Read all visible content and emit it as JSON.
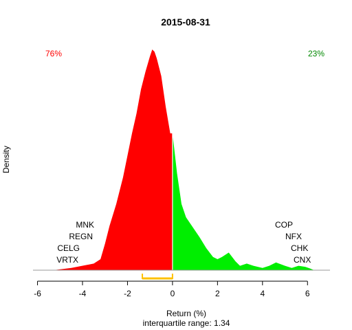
{
  "chart_data": {
    "type": "area",
    "title": "2015-08-31",
    "xlabel": "Return (%)",
    "xlabel_sub": "interquartile range: 1.34",
    "ylabel": "Density",
    "xlim": [
      -6.2,
      7.0
    ],
    "ylim": [
      0,
      1
    ],
    "x_ticks": [
      -6,
      -4,
      -2,
      0,
      2,
      4,
      6
    ],
    "x_tick_labels": [
      "-6",
      "-4",
      "-2",
      "0",
      "2",
      "4",
      "6"
    ],
    "split_at": 0,
    "negative_share_label": "76%",
    "positive_share_label": "23%",
    "colors": {
      "negative": "#ff0000",
      "positive": "#00ee00",
      "divider": "#ffffff",
      "iqr": "#ffc000",
      "axis": "#000000",
      "baseline": "#999999"
    },
    "density": {
      "x": [
        -5.3,
        -4.5,
        -3.5,
        -3.2,
        -3.0,
        -2.8,
        -2.5,
        -2.2,
        -2.0,
        -1.8,
        -1.6,
        -1.4,
        -1.2,
        -1.0,
        -0.9,
        -0.8,
        -0.7,
        -0.5,
        -0.3,
        -0.1,
        0.0,
        0.2,
        0.4,
        0.6,
        0.8,
        1.0,
        1.2,
        1.5,
        1.8,
        2.0,
        2.2,
        2.5,
        2.8,
        3.0,
        3.3,
        3.6,
        4.0,
        4.3,
        4.6,
        5.0,
        5.3,
        5.6,
        5.9,
        6.1,
        6.3
      ],
      "y": [
        0.0,
        0.01,
        0.03,
        0.05,
        0.12,
        0.2,
        0.3,
        0.42,
        0.52,
        0.62,
        0.71,
        0.82,
        0.9,
        0.97,
        1.0,
        0.99,
        0.96,
        0.88,
        0.74,
        0.62,
        0.62,
        0.44,
        0.3,
        0.24,
        0.21,
        0.18,
        0.15,
        0.1,
        0.06,
        0.05,
        0.06,
        0.08,
        0.04,
        0.02,
        0.03,
        0.02,
        0.01,
        0.02,
        0.035,
        0.02,
        0.01,
        0.02,
        0.015,
        0.008,
        0.0
      ]
    },
    "iqr": [
      -1.34,
      0.0
    ],
    "left_labels": [
      "MNK",
      "REGN",
      "CELG",
      "VRTX"
    ],
    "right_labels": [
      "COP",
      "NFX",
      "CHK",
      "CNX"
    ]
  }
}
